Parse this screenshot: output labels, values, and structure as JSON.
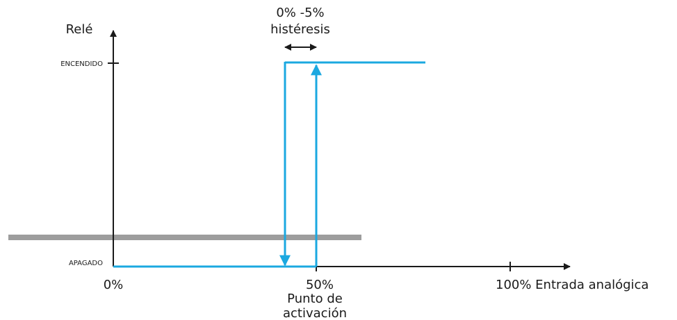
{
  "y_axis_label": "Relé",
  "state_on_label": "ENCENDIDO",
  "state_off_label": "APAGADO",
  "hysteresis": {
    "range_label": "0% -5%",
    "label": "histéresis"
  },
  "x_axis": {
    "tick_0": "0%",
    "tick_50": "50%",
    "tick_100": "100% Entrada analógica"
  },
  "activation_point": {
    "line1": "Punto de",
    "line2": "activación"
  },
  "colors": {
    "axis": "#1a1a1a",
    "relay_curve": "#1ba8e0",
    "grey_band": "#9d9d9d"
  }
}
